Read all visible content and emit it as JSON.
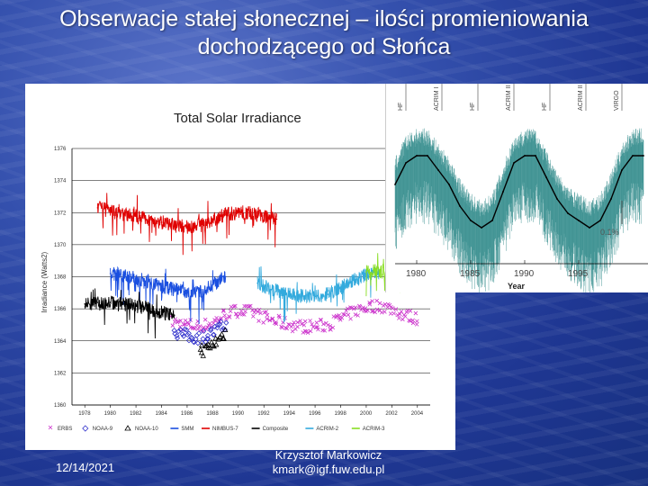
{
  "slide": {
    "title_line1": "Obserwacje stałej słonecznej – ilości promieniowania",
    "title_line2": "dochodzącego od Słońca",
    "date": "12/14/2021",
    "author_name": "Krzysztof Markowicz",
    "author_email": "kmark@igf.fuw.edu.pl"
  },
  "chart_data": [
    {
      "type": "line",
      "title": "Total Solar Irradiance",
      "ylabel": "Irradiance (Watts2)",
      "xlabel": "",
      "ylim": [
        1360,
        1376
      ],
      "xlim": [
        1977,
        2005
      ],
      "yticks": [
        "1376",
        "1374",
        "1372",
        "1370",
        "1368",
        "1366",
        "1364",
        "1362",
        "1360"
      ],
      "xticks": [
        "1978",
        "1980",
        "1982",
        "1984",
        "1986",
        "1988",
        "1990",
        "1992",
        "1994",
        "1996",
        "1998",
        "2000",
        "2002",
        "2004"
      ],
      "grid": true,
      "legend_position": "bottom",
      "series": [
        {
          "name": "ERBS",
          "color": "#cc33cc",
          "marker": "x",
          "x": [
            1984.8,
            1986,
            1987,
            1988,
            1989,
            1990,
            1991,
            1992,
            1993,
            1994,
            1995,
            1996,
            1997,
            1998,
            1999,
            2000,
            2001,
            2002,
            2003,
            2004
          ],
          "y": [
            1365.2,
            1365.0,
            1364.9,
            1365.1,
            1365.7,
            1365.9,
            1365.8,
            1365.5,
            1365.2,
            1365.0,
            1364.9,
            1364.9,
            1365.0,
            1365.4,
            1365.8,
            1366.1,
            1366.2,
            1366.0,
            1365.6,
            1365.4
          ]
        },
        {
          "name": "NOAA-9",
          "color": "#3333cc",
          "marker": "diamond",
          "x": [
            1985,
            1986,
            1987,
            1988,
            1989
          ],
          "y": [
            1364.6,
            1364.3,
            1364.2,
            1364.5,
            1365.0
          ]
        },
        {
          "name": "NOAA-10",
          "color": "#000000",
          "marker": "triangle",
          "x": [
            1987,
            1987.5,
            1988,
            1988.5,
            1989
          ],
          "y": [
            1363.5,
            1363.4,
            1363.8,
            1364.1,
            1364.6
          ]
        },
        {
          "name": "SMM",
          "color": "#1a4fe0",
          "marker": "line",
          "x": [
            1980,
            1981,
            1982,
            1983,
            1984,
            1985,
            1986,
            1987,
            1988,
            1989
          ],
          "y": [
            1368.2,
            1368.1,
            1367.9,
            1367.7,
            1367.4,
            1367.2,
            1367.0,
            1367.0,
            1367.5,
            1368.0
          ]
        },
        {
          "name": "NIMBUS-7",
          "color": "#e00000",
          "marker": "line",
          "x": [
            1979,
            1980,
            1981,
            1982,
            1983,
            1984,
            1985,
            1986,
            1987,
            1988,
            1989,
            1990,
            1991,
            1992,
            1993
          ],
          "y": [
            1372.3,
            1372.1,
            1371.9,
            1371.8,
            1371.6,
            1371.4,
            1371.2,
            1371.1,
            1371.2,
            1371.5,
            1371.9,
            1372.0,
            1372.0,
            1371.8,
            1371.6
          ]
        },
        {
          "name": "Composite",
          "color": "#000000",
          "marker": "line",
          "x": [
            1978,
            1979,
            1980,
            1981,
            1982,
            1983,
            1984,
            1985
          ],
          "y": [
            1366.3,
            1366.4,
            1366.4,
            1366.3,
            1366.2,
            1366.0,
            1365.8,
            1365.6
          ]
        },
        {
          "name": "ACRIM-2",
          "color": "#33aadd",
          "marker": "line",
          "x": [
            1991.5,
            1992,
            1993,
            1994,
            1995,
            1996,
            1997,
            1998,
            1999,
            2000,
            2001
          ],
          "y": [
            1367.6,
            1367.4,
            1367.1,
            1366.9,
            1366.8,
            1366.8,
            1366.9,
            1367.3,
            1367.8,
            1368.1,
            1368.2
          ]
        },
        {
          "name": "ACRIM-3",
          "color": "#88dd22",
          "marker": "line",
          "x": [
            2000,
            2001,
            2002,
            2003,
            2004
          ],
          "y": [
            1368.3,
            1368.4,
            1368.3,
            1368.1,
            1367.9
          ]
        }
      ]
    },
    {
      "type": "line",
      "title": "",
      "xlabel": "Year",
      "ylabel": "",
      "xticks": [
        "1980",
        "1985",
        "1990",
        "1995"
      ],
      "annotation": "0.1%",
      "top_labels": [
        "HF",
        "ACRIM I",
        "HF",
        "ACRIM II",
        "HF",
        "ACRIM II",
        "VIRGO"
      ],
      "series": [
        {
          "color": "#2e8a8a",
          "x": [
            1978,
            1979,
            1980,
            1981,
            1982,
            1983,
            1984,
            1985,
            1986,
            1987,
            1988,
            1989,
            1990,
            1991,
            1992,
            1993,
            1994,
            1995,
            1996,
            1997,
            1998,
            1999,
            2000,
            2001
          ],
          "y": [
            1366.2,
            1366.5,
            1366.6,
            1366.6,
            1366.4,
            1366.2,
            1365.9,
            1365.7,
            1365.6,
            1365.7,
            1366.1,
            1366.5,
            1366.6,
            1366.6,
            1366.3,
            1366.0,
            1365.8,
            1365.7,
            1365.6,
            1365.7,
            1366.0,
            1366.4,
            1366.6,
            1366.6
          ]
        }
      ]
    }
  ]
}
